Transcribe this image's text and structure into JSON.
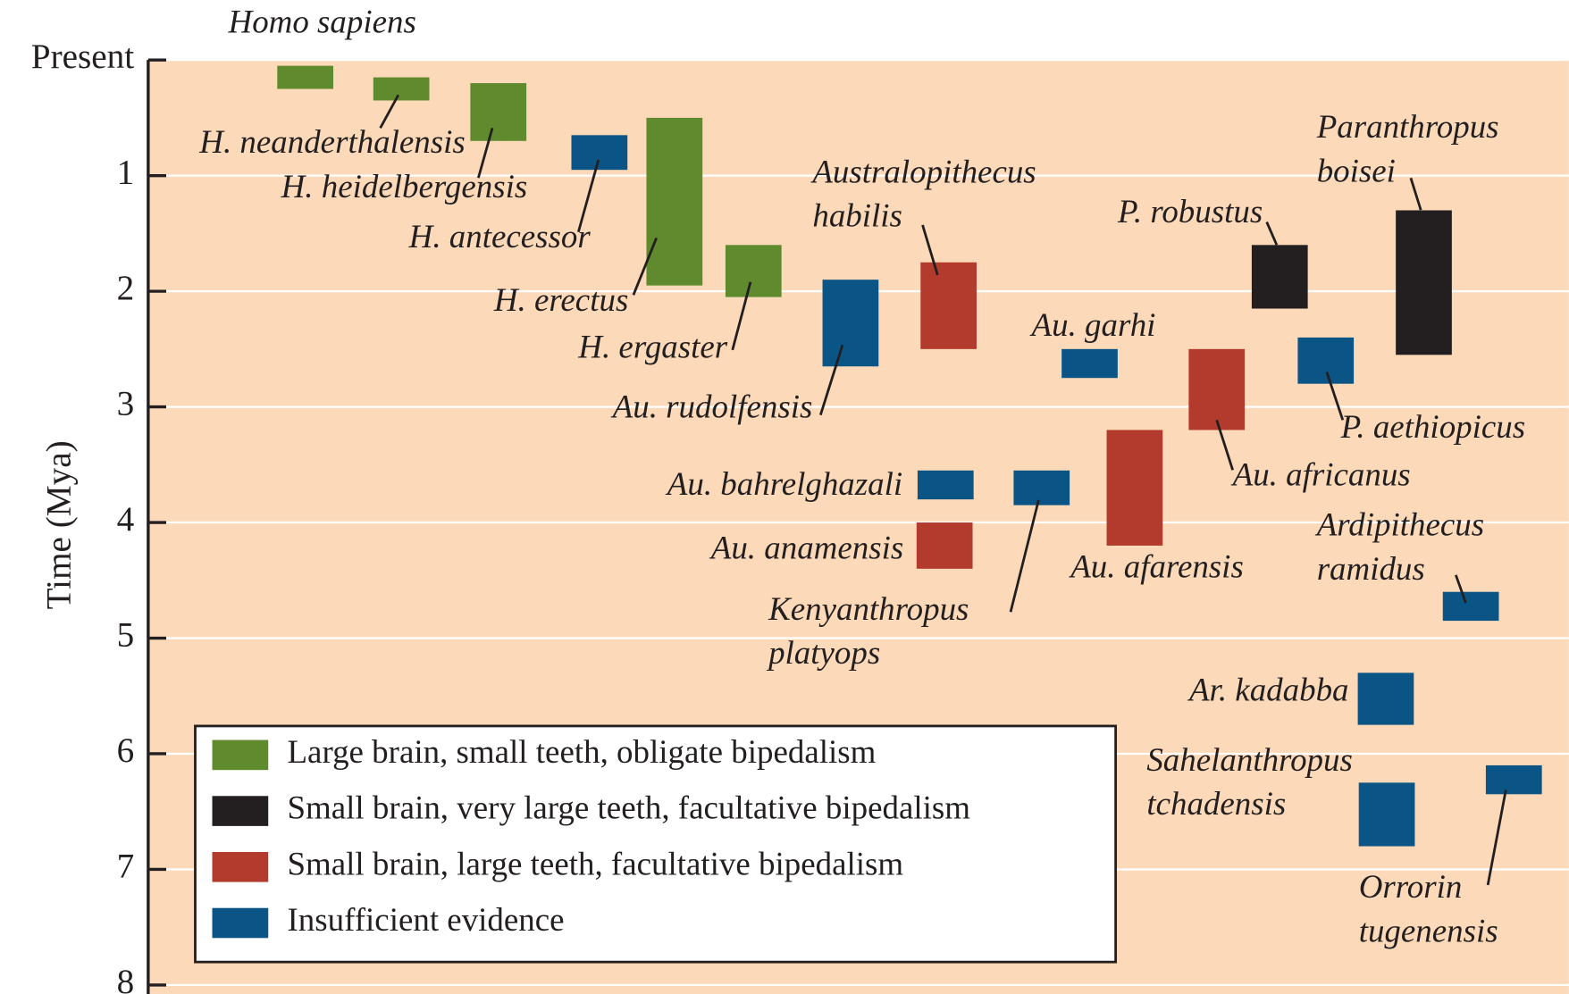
{
  "chart_data": {
    "type": "range_bar",
    "ylabel": "Time (Mya)",
    "ylim": [
      0,
      8
    ],
    "y_inverted": true,
    "yticks": [
      {
        "value": 0,
        "label": "Present"
      },
      1,
      2,
      3,
      4,
      5,
      6,
      7,
      8
    ],
    "grid": true,
    "background": "#fcd9b8",
    "legend": "lower left",
    "series": [
      {
        "name": "Large brain, small teeth, obligate bipedalism",
        "color": "#5f8a2d",
        "species": [
          "Homo sapiens",
          "H. neanderthalensis",
          "H. heidelbergensis",
          "H. erectus",
          "H. ergaster"
        ],
        "start": [
          0.05,
          0.15,
          0.2,
          0.5,
          1.6
        ],
        "end": [
          0.25,
          0.35,
          0.7,
          1.95,
          2.05
        ]
      },
      {
        "name": "Small brain, very large teeth, facultative bipedalism",
        "color": "#231f20",
        "species": [
          "P. robustus",
          [
            "Paranthropus",
            "boisei"
          ]
        ],
        "start": [
          1.6,
          1.3
        ],
        "end": [
          2.15,
          2.55
        ]
      },
      {
        "name": "Small brain, large teeth, facultative bipedalism",
        "color": "#b33b2e",
        "species": [
          [
            "Australopithecus",
            "habilis"
          ],
          "Au. anamensis",
          "Au. africanus",
          "Au. afarensis"
        ],
        "start": [
          1.75,
          4.0,
          2.5,
          3.2
        ],
        "end": [
          2.5,
          4.4,
          3.2,
          4.2
        ]
      },
      {
        "name": "Insufficient evidence",
        "color": "#0a5486",
        "species": [
          "H. antecessor",
          "Au. rudolfensis",
          "Au. garhi",
          "Au. bahrelghazali",
          [
            "Kenyanthropus",
            "platyops"
          ],
          "P. aethiopicus",
          [
            "Ardipithecus",
            "ramidus"
          ],
          "Ar. kadabba",
          [
            "Sahelanthropus",
            "tchadensis"
          ],
          [
            "Orrorin",
            "tugenensis"
          ]
        ],
        "start": [
          0.65,
          1.9,
          2.5,
          3.55,
          3.55,
          2.4,
          4.6,
          5.3,
          6.25,
          6.1
        ],
        "end": [
          0.95,
          2.65,
          2.75,
          3.8,
          3.85,
          2.8,
          4.85,
          5.75,
          6.8,
          6.35
        ]
      }
    ]
  }
}
